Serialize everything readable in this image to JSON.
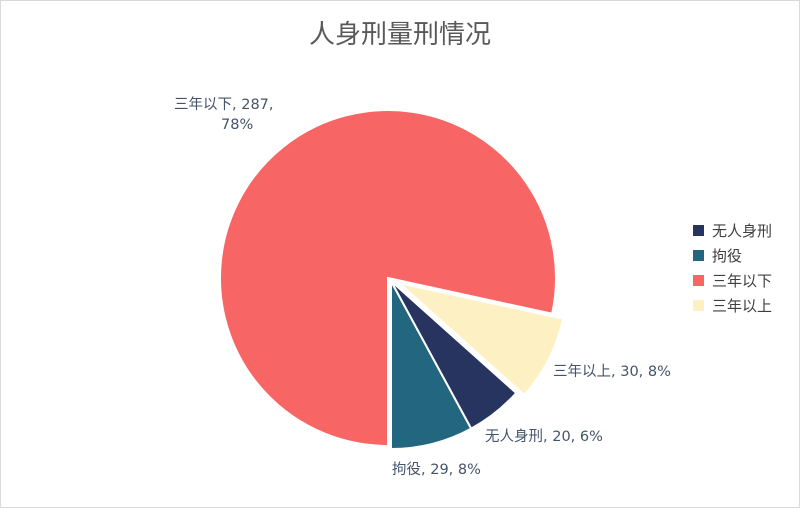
{
  "chart_data": {
    "type": "pie",
    "title": "人身刑量刑情况",
    "categories": [
      "无人身刑",
      "拘役",
      "三年以下",
      "三年以上"
    ],
    "values": [
      20,
      29,
      287,
      30
    ],
    "percentages": [
      "6%",
      "8%",
      "78%",
      "8%"
    ],
    "colors": [
      "#283460",
      "#226680",
      "#f86565",
      "#fdf0c2"
    ],
    "exploded": true,
    "legend_position": "right",
    "data_labels": [
      {
        "lines": [
          "无人身刑, 20, 6%"
        ]
      },
      {
        "lines": [
          "拘役, 29, 8%"
        ]
      },
      {
        "lines": [
          "三年以下, 287,",
          "78%"
        ]
      },
      {
        "lines": [
          "三年以上, 30, 8%"
        ]
      }
    ]
  }
}
